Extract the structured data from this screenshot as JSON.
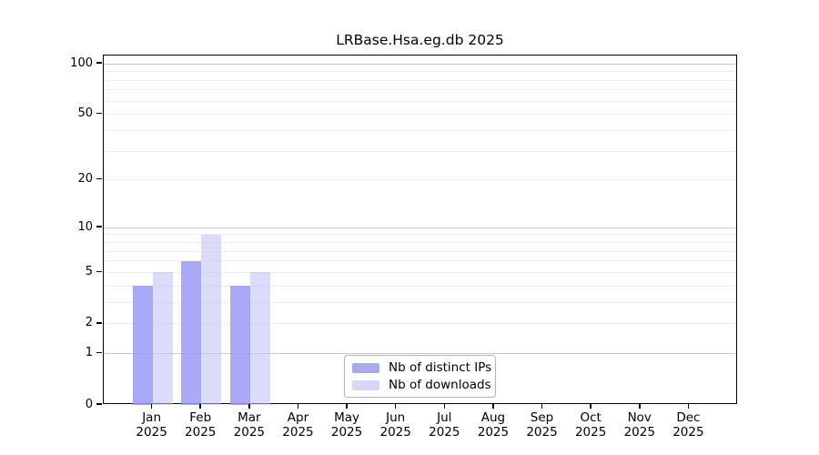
{
  "title": "LRBase.Hsa.eg.db 2025",
  "chart_data": {
    "type": "bar",
    "title": "LRBase.Hsa.eg.db 2025",
    "categories": [
      "Jan 2025",
      "Feb 2025",
      "Mar 2025",
      "Apr 2025",
      "May 2025",
      "Jun 2025",
      "Jul 2025",
      "Aug 2025",
      "Sep 2025",
      "Oct 2025",
      "Nov 2025",
      "Dec 2025"
    ],
    "series": [
      {
        "name": "Nb of distinct IPs",
        "color": "#a9a9f0",
        "bar_color": "rgba(154,154,247,0.85)",
        "values": [
          4,
          6,
          4,
          0,
          0,
          0,
          0,
          0,
          0,
          0,
          0,
          0
        ]
      },
      {
        "name": "Nb of downloads",
        "color": "#d5d5f7",
        "bar_color": "rgba(193,193,246,0.58)",
        "values": [
          5,
          9,
          5,
          0,
          0,
          0,
          0,
          0,
          0,
          0,
          0,
          0
        ]
      }
    ],
    "yscale": "log1p",
    "ylim": [
      0,
      112
    ],
    "yticks": [
      0,
      1,
      2,
      5,
      10,
      20,
      50,
      100
    ],
    "grid_major": [
      1,
      10,
      100
    ],
    "grid_minor": [
      2,
      3,
      4,
      5,
      6,
      7,
      8,
      9,
      20,
      30,
      40,
      50,
      60,
      70,
      80,
      90
    ],
    "grid": "horizontal",
    "legend_position": "bottom-center"
  },
  "colors": {
    "background": "#ffffff",
    "axis": "#000000",
    "grid_major": "#c8c8c8",
    "grid_minor": "#ededed",
    "legend_border": "#b4b4b4"
  }
}
